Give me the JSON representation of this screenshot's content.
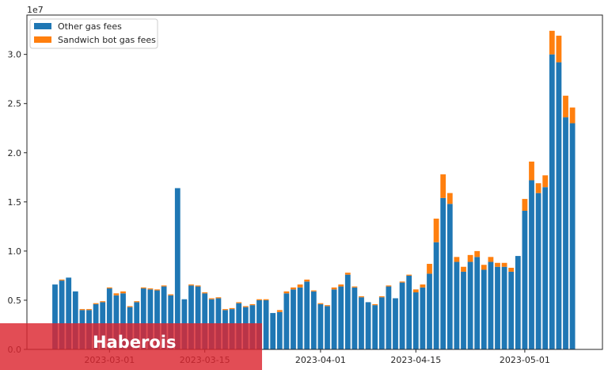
{
  "chart_data": {
    "type": "bar",
    "stacked": true,
    "x_start": "2023-02-21",
    "y_multiplier_label": "1e7",
    "ylim": [
      0,
      3.4
    ],
    "yticks": [
      0.0,
      0.5,
      1.0,
      1.5,
      2.0,
      2.5,
      3.0
    ],
    "ytick_labels": [
      "0.0",
      "0.5",
      "1.0",
      "1.5",
      "2.0",
      "2.5",
      "3.0"
    ],
    "xticks": [
      "2023-03-01",
      "2023-03-15",
      "2023-04-01",
      "2023-04-15",
      "2023-05-01"
    ],
    "legend_position": "top-left",
    "grid": false,
    "series": [
      {
        "name": "Other gas fees",
        "color": "#1f77b4",
        "values": [
          0.66,
          0.7,
          0.73,
          0.59,
          0.4,
          0.4,
          0.46,
          0.48,
          0.62,
          0.55,
          0.57,
          0.43,
          0.48,
          0.62,
          0.61,
          0.6,
          0.64,
          0.55,
          1.64,
          0.51,
          0.65,
          0.64,
          0.57,
          0.51,
          0.52,
          0.4,
          0.41,
          0.47,
          0.43,
          0.45,
          0.5,
          0.5,
          0.37,
          0.38,
          0.57,
          0.61,
          0.63,
          0.69,
          0.59,
          0.46,
          0.44,
          0.61,
          0.64,
          0.76,
          0.63,
          0.53,
          0.48,
          0.45,
          0.53,
          0.64,
          0.52,
          0.68,
          0.75,
          0.58,
          0.63,
          0.77,
          1.09,
          1.54,
          1.48,
          0.89,
          0.79,
          0.89,
          0.94,
          0.81,
          0.89,
          0.84,
          0.84,
          0.79,
          0.95,
          1.41,
          1.72,
          1.59,
          1.65,
          3.0,
          2.92,
          2.36,
          2.3
        ]
      },
      {
        "name": "Sandwich bot gas fees",
        "color": "#ff7f0e",
        "values": [
          0.0,
          0.01,
          0.0,
          0.0,
          0.01,
          0.01,
          0.01,
          0.01,
          0.01,
          0.02,
          0.02,
          0.01,
          0.01,
          0.01,
          0.01,
          0.01,
          0.01,
          0.01,
          0.0,
          0.0,
          0.01,
          0.01,
          0.01,
          0.01,
          0.01,
          0.01,
          0.01,
          0.01,
          0.01,
          0.01,
          0.01,
          0.01,
          0.0,
          0.02,
          0.02,
          0.02,
          0.03,
          0.02,
          0.01,
          0.01,
          0.01,
          0.02,
          0.02,
          0.02,
          0.01,
          0.01,
          0.0,
          0.01,
          0.01,
          0.01,
          0.0,
          0.01,
          0.01,
          0.03,
          0.03,
          0.1,
          0.24,
          0.24,
          0.11,
          0.05,
          0.05,
          0.07,
          0.06,
          0.05,
          0.05,
          0.04,
          0.04,
          0.04,
          0.0,
          0.12,
          0.19,
          0.1,
          0.12,
          0.24,
          0.27,
          0.22,
          0.16
        ]
      }
    ]
  },
  "overlay": {
    "text": "Haberois"
  }
}
